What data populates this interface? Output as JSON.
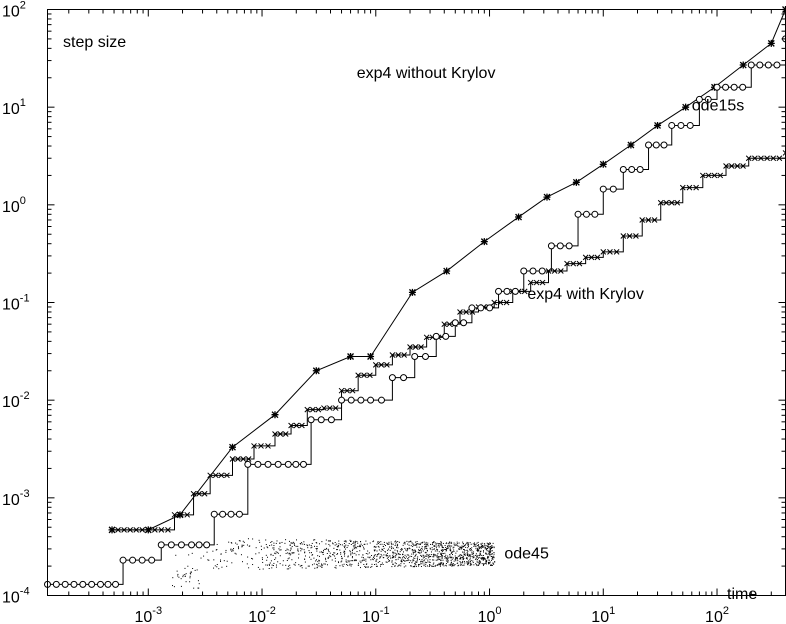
{
  "chart_data": {
    "type": "line",
    "title": "",
    "xlabel": "time",
    "ylabel": "step size",
    "xscale": "log",
    "yscale": "log",
    "xlim": [
      0.00013,
      400
    ],
    "ylim": [
      0.0001,
      100
    ],
    "grid": false,
    "x_ticks": [
      {
        "value": 0.001,
        "base": "10",
        "exp": "-3"
      },
      {
        "value": 0.01,
        "base": "10",
        "exp": "-2"
      },
      {
        "value": 0.1,
        "base": "10",
        "exp": "-1"
      },
      {
        "value": 1,
        "base": "10",
        "exp": "0"
      },
      {
        "value": 10,
        "base": "10",
        "exp": "1"
      },
      {
        "value": 100,
        "base": "10",
        "exp": "2"
      }
    ],
    "y_ticks": [
      {
        "value": 0.0001,
        "base": "10",
        "exp": "-4"
      },
      {
        "value": 0.001,
        "base": "10",
        "exp": "-3"
      },
      {
        "value": 0.01,
        "base": "10",
        "exp": "-2"
      },
      {
        "value": 0.1,
        "base": "10",
        "exp": "-1"
      },
      {
        "value": 1,
        "base": "10",
        "exp": "0"
      },
      {
        "value": 10,
        "base": "10",
        "exp": "1"
      },
      {
        "value": 100,
        "base": "10",
        "exp": "2"
      }
    ],
    "annotations": [
      {
        "id": "exp4-without",
        "text": "exp4 without Krylov",
        "x": 0.068,
        "y": 20
      },
      {
        "id": "ode15s",
        "text": "ode15s",
        "x": 60,
        "y": 9.2
      },
      {
        "id": "exp4-with",
        "text": "exp4 with Krylov",
        "x": 2.15,
        "y": 0.108
      },
      {
        "id": "ode45",
        "text": "ode45",
        "x": 1.35,
        "y": 0.00024
      }
    ],
    "series": [
      {
        "name": "exp4 without Krylov",
        "marker": "asterisk",
        "step": false,
        "x": [
          0.00048,
          0.001,
          0.0019,
          0.0055,
          0.013,
          0.03,
          0.06,
          0.09,
          0.21,
          0.42,
          0.9,
          1.8,
          3.2,
          5.8,
          10,
          17.5,
          30,
          53,
          95,
          170,
          300,
          400
        ],
        "y": [
          0.00047,
          0.00047,
          0.00067,
          0.0033,
          0.0071,
          0.02,
          0.028,
          0.028,
          0.127,
          0.21,
          0.42,
          0.75,
          1.2,
          1.7,
          2.6,
          4.1,
          6.5,
          10,
          16,
          27,
          45,
          100
        ]
      },
      {
        "name": "exp4 with Krylov",
        "marker": "x",
        "step": true,
        "x": [
          0.00048,
          0.001,
          0.0017,
          0.0025,
          0.0035,
          0.0055,
          0.0085,
          0.013,
          0.018,
          0.025,
          0.035,
          0.05,
          0.07,
          0.1,
          0.14,
          0.2,
          0.28,
          0.4,
          0.55,
          0.8,
          1.1,
          1.6,
          2.3,
          3.3,
          4.8,
          7,
          10,
          15,
          22,
          32,
          50,
          75,
          120,
          190,
          400
        ],
        "y": [
          0.00047,
          0.00047,
          0.00067,
          0.0011,
          0.0017,
          0.0025,
          0.0034,
          0.0045,
          0.0055,
          0.008,
          0.0083,
          0.0125,
          0.018,
          0.023,
          0.029,
          0.035,
          0.044,
          0.06,
          0.08,
          0.09,
          0.1,
          0.13,
          0.16,
          0.21,
          0.25,
          0.29,
          0.33,
          0.48,
          0.7,
          1.05,
          1.5,
          2,
          2.5,
          3,
          3.4
        ]
      },
      {
        "name": "ode15s",
        "marker": "circle",
        "step": true,
        "x": [
          0.00013,
          0.00038,
          0.0006,
          0.0013,
          0.0024,
          0.0038,
          0.0075,
          0.017,
          0.027,
          0.05,
          0.09,
          0.14,
          0.22,
          0.34,
          0.5,
          0.7,
          1.2,
          2,
          3.5,
          6,
          10,
          15,
          25,
          40,
          70,
          100,
          200,
          400
        ],
        "y": [
          0.00013,
          0.00013,
          0.00023,
          0.00033,
          0.00033,
          0.00068,
          0.0022,
          0.0022,
          0.0063,
          0.01,
          0.01,
          0.017,
          0.028,
          0.045,
          0.062,
          0.088,
          0.13,
          0.21,
          0.38,
          0.8,
          1.45,
          2.3,
          4.1,
          6.5,
          12,
          16,
          27,
          50
        ]
      },
      {
        "name": "ode45",
        "marker": "dot",
        "step": false,
        "scatter": true,
        "x_range": [
          0.0015,
          1.1
        ],
        "y_range": [
          0.00018,
          0.00035
        ]
      }
    ]
  }
}
